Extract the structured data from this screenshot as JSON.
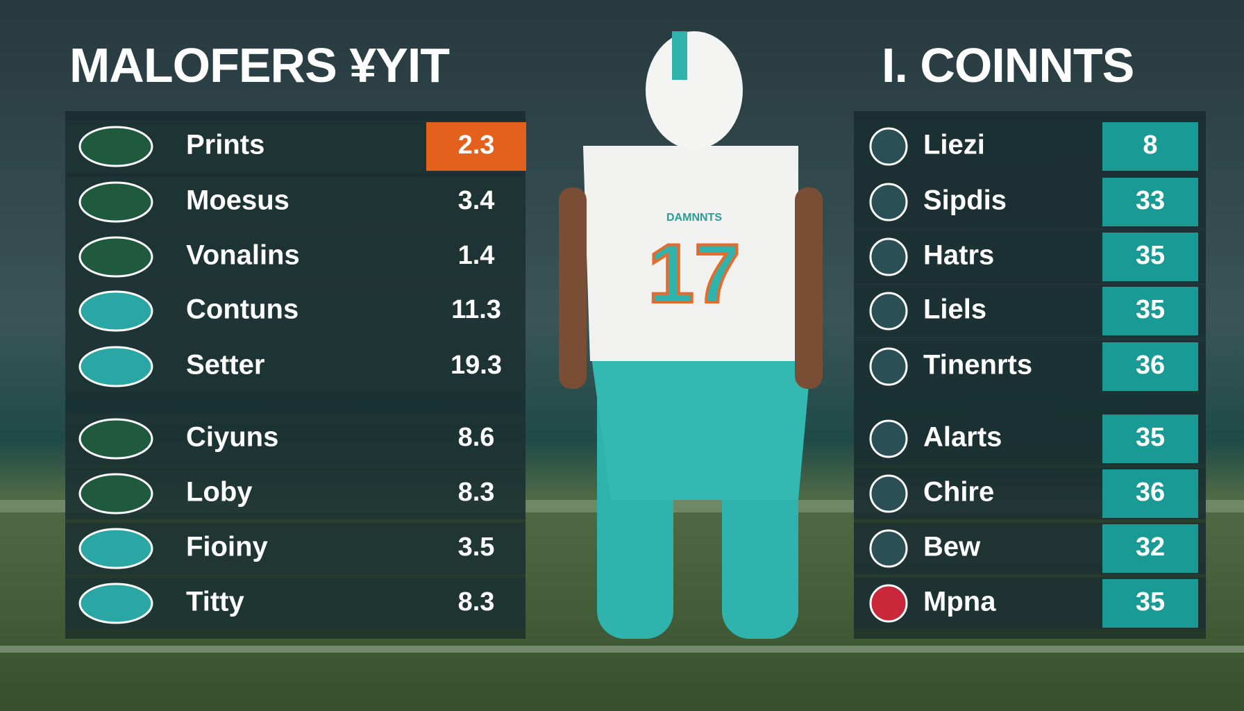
{
  "left": {
    "title": "MALOFERS ¥YIT",
    "rows": [
      [
        "Prints",
        2.3
      ],
      [
        "Moesus",
        3.4
      ],
      [
        "Vonalins",
        1.4
      ],
      [
        "Contuns",
        11.3
      ],
      [
        "Setter",
        19.3
      ],
      [
        "Ciyuns",
        8.6
      ],
      [
        "Loby",
        8.3
      ],
      [
        "Fioiny",
        3.5
      ],
      [
        "Titty",
        8.3
      ]
    ]
  },
  "right": {
    "title": "I. COINNTS",
    "rows": [
      [
        "Liezi",
        8
      ],
      [
        "Sipdis",
        33
      ],
      [
        "Hatrs",
        35
      ],
      [
        "Liels",
        35
      ],
      [
        "Tinenrts",
        36
      ],
      [
        "Alarts",
        35
      ],
      [
        "Chire",
        36
      ],
      [
        "Bew",
        32
      ],
      [
        "Mpna",
        35
      ]
    ]
  },
  "player": {
    "jersey": "DAMNNTS",
    "number": "17"
  }
}
